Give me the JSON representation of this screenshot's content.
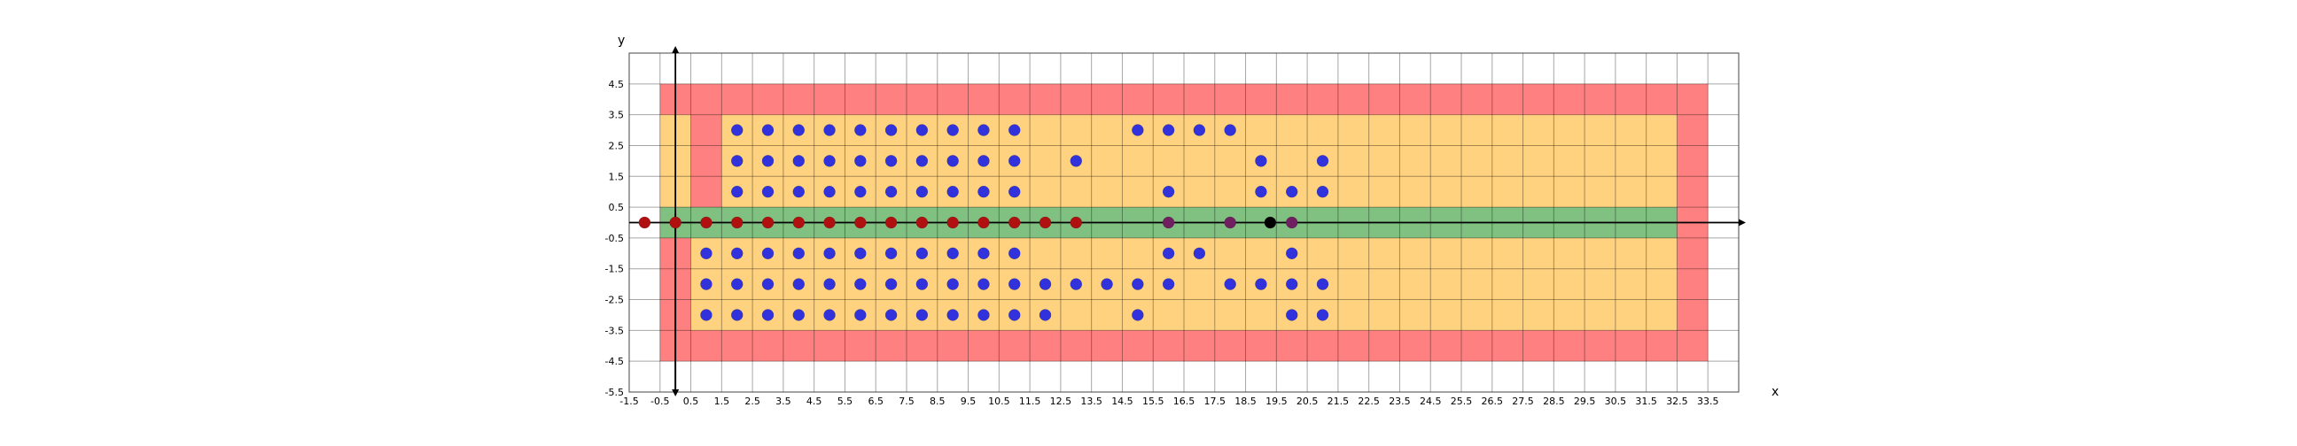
{
  "chart_data": {
    "type": "scatter",
    "title": "",
    "xlabel": "x",
    "ylabel": "y",
    "xlim": [
      -1.5,
      34.5
    ],
    "ylim": [
      -5.5,
      5.5
    ],
    "grid": true,
    "x_ticks": [
      -1.5,
      -0.5,
      0.5,
      1.5,
      2.5,
      3.5,
      4.5,
      5.5,
      6.5,
      7.5,
      8.5,
      9.5,
      10.5,
      11.5,
      12.5,
      13.5,
      14.5,
      15.5,
      16.5,
      17.5,
      18.5,
      19.5,
      20.5,
      21.5,
      22.5,
      23.5,
      24.5,
      25.5,
      26.5,
      27.5,
      28.5,
      29.5,
      30.5,
      31.5,
      32.5,
      33.5
    ],
    "x_tick_labels": [
      "-1.5",
      "-0.5",
      "0.5",
      "1.5",
      "2.5",
      "3.5",
      "4.5",
      "5.5",
      "6.5",
      "7.5",
      "8.5",
      "9.5",
      "10.5",
      "11.5",
      "12.5",
      "13.5",
      "14.5",
      "15.5",
      "16.5",
      "17.5",
      "18.5",
      "19.5",
      "20.5",
      "21.5",
      "22.5",
      "23.5",
      "24.5",
      "25.5",
      "26.5",
      "27.5",
      "28.5",
      "29.5",
      "30.5",
      "31.5",
      "32.5",
      "33.5"
    ],
    "y_ticks": [
      4.5,
      3.5,
      2.5,
      1.5,
      0.5,
      -0.5,
      -1.5,
      -2.5,
      -3.5,
      -4.5,
      -5.5
    ],
    "y_tick_labels": [
      "4.5",
      "3.5",
      "2.5",
      "1.5",
      "0.5",
      "-0.5",
      "-1.5",
      "-2.5",
      "-3.5",
      "-4.5",
      "-5.5"
    ],
    "regions": [
      {
        "color": "#ff8080",
        "x": [
          -0.5,
          33.5
        ],
        "y": [
          -4.5,
          4.5
        ]
      },
      {
        "color": "#ffd280",
        "x": [
          0.5,
          32.5
        ],
        "y": [
          -3.5,
          -0.5
        ]
      },
      {
        "color": "#ffd280",
        "x": [
          1.5,
          32.5
        ],
        "y": [
          0.5,
          3.5
        ]
      },
      {
        "color": "#ffd280",
        "x": [
          -0.5,
          0.5
        ],
        "y": [
          0.5,
          3.5
        ]
      },
      {
        "color": "#80c080",
        "x": [
          -0.5,
          32.5
        ],
        "y": [
          -0.5,
          0.5
        ]
      }
    ],
    "series": [
      {
        "color": "#3232dd",
        "points": [
          [
            2,
            3
          ],
          [
            3,
            3
          ],
          [
            4,
            3
          ],
          [
            5,
            3
          ],
          [
            6,
            3
          ],
          [
            7,
            3
          ],
          [
            8,
            3
          ],
          [
            9,
            3
          ],
          [
            10,
            3
          ],
          [
            11,
            3
          ],
          [
            15,
            3
          ],
          [
            16,
            3
          ],
          [
            17,
            3
          ],
          [
            18,
            3
          ],
          [
            2,
            2
          ],
          [
            3,
            2
          ],
          [
            4,
            2
          ],
          [
            5,
            2
          ],
          [
            6,
            2
          ],
          [
            7,
            2
          ],
          [
            8,
            2
          ],
          [
            9,
            2
          ],
          [
            10,
            2
          ],
          [
            11,
            2
          ],
          [
            13,
            2
          ],
          [
            19,
            2
          ],
          [
            21,
            2
          ],
          [
            2,
            1
          ],
          [
            3,
            1
          ],
          [
            4,
            1
          ],
          [
            5,
            1
          ],
          [
            6,
            1
          ],
          [
            7,
            1
          ],
          [
            8,
            1
          ],
          [
            9,
            1
          ],
          [
            10,
            1
          ],
          [
            11,
            1
          ],
          [
            16,
            1
          ],
          [
            19,
            1
          ],
          [
            20,
            1
          ],
          [
            21,
            1
          ],
          [
            1,
            -1
          ],
          [
            2,
            -1
          ],
          [
            3,
            -1
          ],
          [
            4,
            -1
          ],
          [
            5,
            -1
          ],
          [
            6,
            -1
          ],
          [
            7,
            -1
          ],
          [
            8,
            -1
          ],
          [
            9,
            -1
          ],
          [
            10,
            -1
          ],
          [
            11,
            -1
          ],
          [
            16,
            -1
          ],
          [
            17,
            -1
          ],
          [
            20,
            -1
          ],
          [
            1,
            -2
          ],
          [
            2,
            -2
          ],
          [
            3,
            -2
          ],
          [
            4,
            -2
          ],
          [
            5,
            -2
          ],
          [
            6,
            -2
          ],
          [
            7,
            -2
          ],
          [
            8,
            -2
          ],
          [
            9,
            -2
          ],
          [
            10,
            -2
          ],
          [
            11,
            -2
          ],
          [
            12,
            -2
          ],
          [
            13,
            -2
          ],
          [
            14,
            -2
          ],
          [
            15,
            -2
          ],
          [
            16,
            -2
          ],
          [
            18,
            -2
          ],
          [
            19,
            -2
          ],
          [
            20,
            -2
          ],
          [
            21,
            -2
          ],
          [
            1,
            -3
          ],
          [
            2,
            -3
          ],
          [
            3,
            -3
          ],
          [
            4,
            -3
          ],
          [
            5,
            -3
          ],
          [
            6,
            -3
          ],
          [
            7,
            -3
          ],
          [
            8,
            -3
          ],
          [
            9,
            -3
          ],
          [
            10,
            -3
          ],
          [
            11,
            -3
          ],
          [
            12,
            -3
          ],
          [
            15,
            -3
          ],
          [
            20,
            -3
          ],
          [
            21,
            -3
          ]
        ]
      },
      {
        "color": "#b01010",
        "points": [
          [
            -1,
            0
          ],
          [
            0,
            0
          ],
          [
            1,
            0
          ],
          [
            2,
            0
          ],
          [
            3,
            0
          ],
          [
            4,
            0
          ],
          [
            5,
            0
          ],
          [
            6,
            0
          ],
          [
            7,
            0
          ],
          [
            8,
            0
          ],
          [
            9,
            0
          ],
          [
            10,
            0
          ],
          [
            11,
            0
          ],
          [
            12,
            0
          ],
          [
            13,
            0
          ]
        ]
      },
      {
        "color": "#702060",
        "points": [
          [
            16,
            0
          ],
          [
            18,
            0
          ],
          [
            20,
            0
          ]
        ]
      },
      {
        "color": "#000000",
        "points": [
          [
            19.3,
            0
          ]
        ]
      }
    ]
  }
}
